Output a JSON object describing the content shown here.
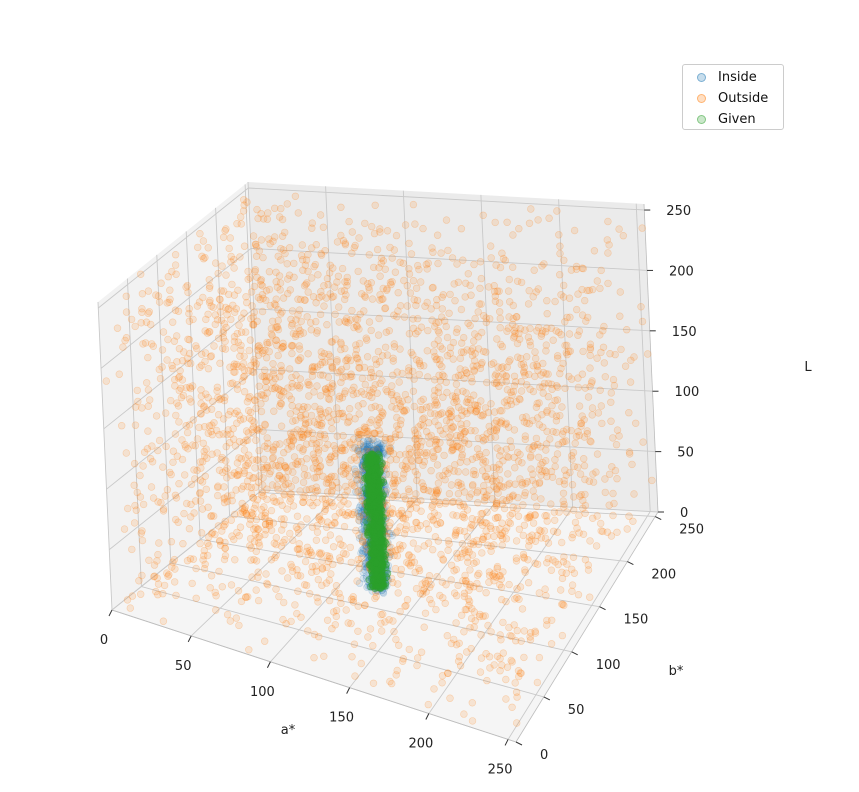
{
  "chart_data": {
    "type": "scatter",
    "projection": "3d",
    "axes": {
      "x": {
        "label": "a*",
        "ticks": [
          0,
          50,
          100,
          150,
          200,
          250
        ],
        "range": [
          0,
          255
        ]
      },
      "y": {
        "label": "b*",
        "ticks": [
          0,
          50,
          100,
          150,
          200,
          250
        ],
        "range": [
          0,
          255
        ]
      },
      "z": {
        "label": "L",
        "ticks": [
          0,
          50,
          100,
          150,
          200,
          250
        ],
        "range": [
          0,
          255
        ]
      }
    },
    "grid": true,
    "legend_position": "top-right",
    "series": [
      {
        "name": "Inside",
        "color": "#1f77b4",
        "alpha": 0.12,
        "distribution": "cluster",
        "approx_count": 900,
        "a_range": [
          110,
          135
        ],
        "b_range": [
          110,
          140
        ],
        "L_range": [
          0,
          120
        ]
      },
      {
        "name": "Outside",
        "color": "#ff7f0e",
        "alpha": 0.15,
        "distribution": "uniform",
        "approx_count": 3000,
        "a_range": [
          0,
          255
        ],
        "b_range": [
          0,
          255
        ],
        "L_range": [
          0,
          255
        ]
      },
      {
        "name": "Given",
        "color": "#2ca02c",
        "alpha": 0.35,
        "distribution": "cluster",
        "approx_count": 800,
        "a_range": [
          116,
          130
        ],
        "b_range": [
          118,
          134
        ],
        "L_range": [
          0,
          110
        ]
      }
    ]
  }
}
